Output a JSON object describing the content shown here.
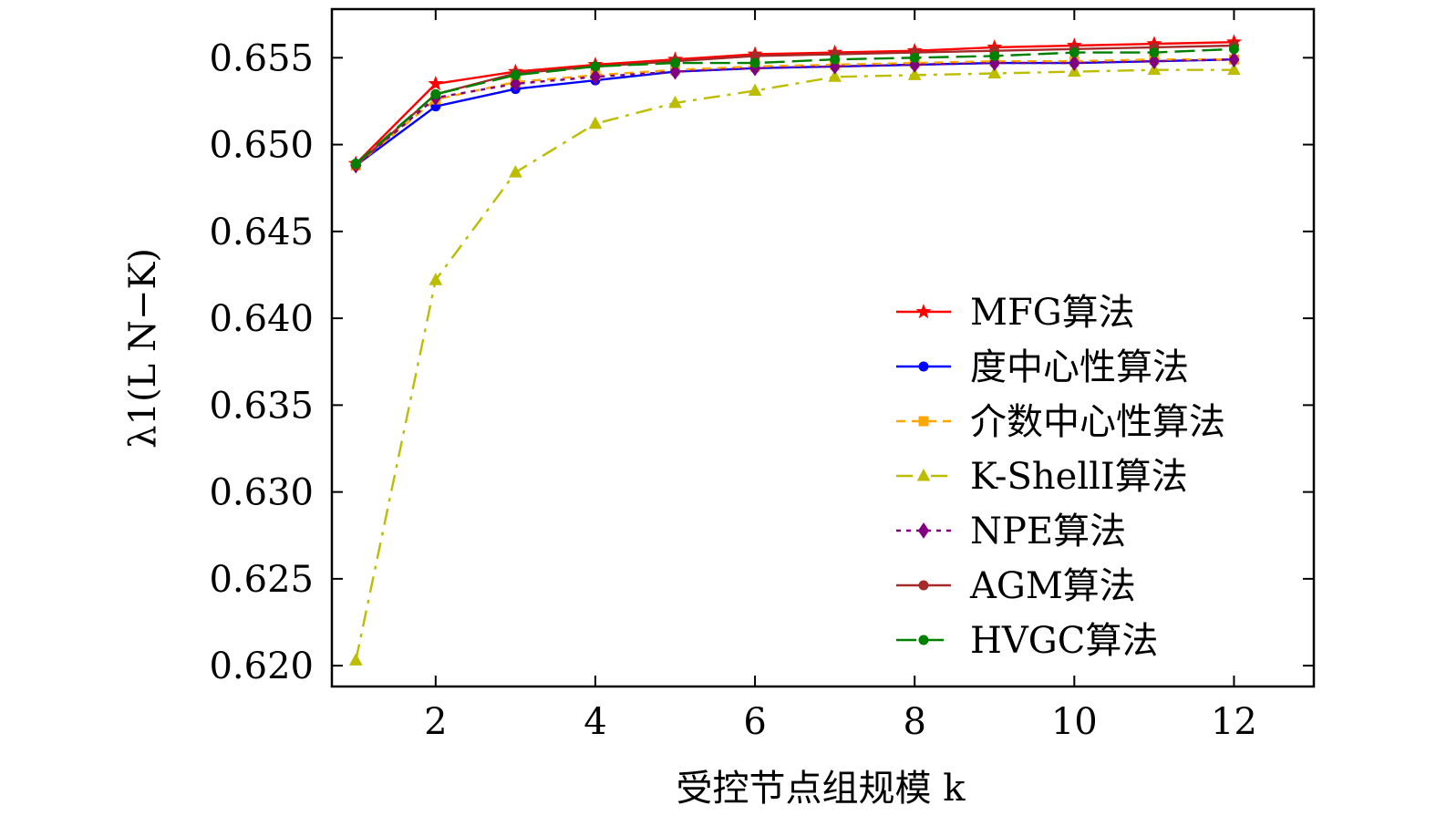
{
  "chart_data": {
    "type": "line",
    "xlabel": "受控节点组规模 k",
    "ylabel": "λ1(L N−K)",
    "xlim": [
      0.7,
      13.0
    ],
    "ylim": [
      0.6188,
      0.6578
    ],
    "xticks": [
      2,
      4,
      6,
      8,
      10,
      12
    ],
    "yticks": [
      0.62,
      0.625,
      0.63,
      0.635,
      0.64,
      0.645,
      0.65,
      0.655
    ],
    "ytick_labels": [
      "0.620",
      "0.625",
      "0.630",
      "0.635",
      "0.640",
      "0.645",
      "0.650",
      "0.655"
    ],
    "grid": false,
    "legend_position": "right",
    "x": [
      1,
      2,
      3,
      4,
      5,
      6,
      7,
      8,
      9,
      10,
      11,
      12
    ],
    "series": [
      {
        "name": "MFG算法",
        "color": "#ff0000",
        "dash": "solid",
        "marker": "star",
        "values": [
          0.6489,
          0.6535,
          0.6542,
          0.6546,
          0.6549,
          0.6552,
          0.6553,
          0.6554,
          0.6556,
          0.6557,
          0.6558,
          0.6559
        ]
      },
      {
        "name": "度中心性算法",
        "color": "#0000ff",
        "dash": "solid",
        "marker": "circle",
        "values": [
          0.6488,
          0.6522,
          0.6532,
          0.6537,
          0.6542,
          0.6544,
          0.6545,
          0.6546,
          0.6547,
          0.6547,
          0.6548,
          0.6549
        ]
      },
      {
        "name": "介数中心性算法",
        "color": "#ffa500",
        "dash": "dash",
        "marker": "square",
        "values": [
          0.6488,
          0.6526,
          0.6536,
          0.654,
          0.6543,
          0.6545,
          0.6546,
          0.6547,
          0.6548,
          0.6548,
          0.6549,
          0.6549
        ]
      },
      {
        "name": "K-ShellI算法",
        "color": "#bdbd00",
        "dash": "dashdot",
        "marker": "triangle",
        "values": [
          0.6203,
          0.6422,
          0.6484,
          0.6512,
          0.6524,
          0.6531,
          0.6539,
          0.654,
          0.6541,
          0.6542,
          0.6543,
          0.6543
        ]
      },
      {
        "name": "NPE算法",
        "color": "#800080",
        "dash": "dot",
        "marker": "diamond",
        "values": [
          0.6488,
          0.6527,
          0.6535,
          0.6539,
          0.6542,
          0.6544,
          0.6545,
          0.6546,
          0.6547,
          0.6547,
          0.6548,
          0.6549
        ]
      },
      {
        "name": "AGM算法",
        "color": "#a52a2a",
        "dash": "solid",
        "marker": "circle",
        "values": [
          0.6488,
          0.6529,
          0.6541,
          0.6545,
          0.6548,
          0.6551,
          0.6552,
          0.6553,
          0.6554,
          0.6555,
          0.6556,
          0.6557
        ]
      },
      {
        "name": "HVGC算法",
        "color": "#008000",
        "dash": "longdash",
        "marker": "circle",
        "values": [
          0.6489,
          0.6529,
          0.654,
          0.6545,
          0.6547,
          0.6547,
          0.6549,
          0.655,
          0.6551,
          0.6553,
          0.6553,
          0.6555
        ]
      }
    ]
  }
}
